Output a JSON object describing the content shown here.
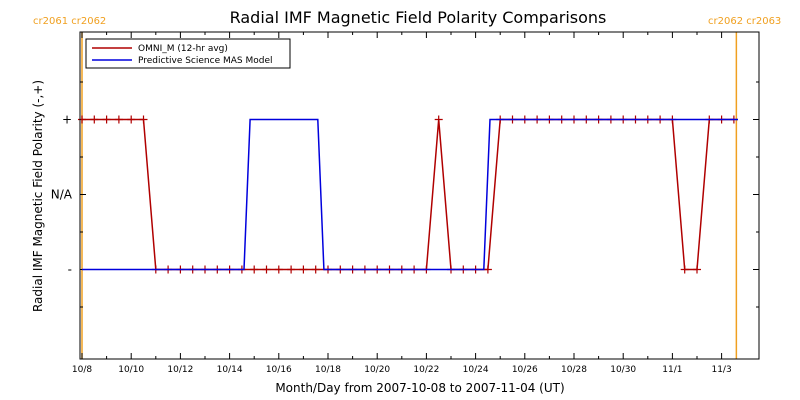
{
  "chart_data": {
    "type": "line",
    "title": "Radial IMF Magnetic Field Polarity Comparisons",
    "xlabel": "Month/Day from 2007-10-08 to 2007-11-04 (UT)",
    "ylabel": "Radial IMF Magnetic Field Polarity (-,+)",
    "carrington_labels": {
      "left": "cr2061 cr2062",
      "right": "cr2062 cr2063"
    },
    "carrington_boundaries": [
      "2007-10-08",
      "2007-11-03.6"
    ],
    "xlim": [
      "2007-10-08",
      "2007-11-04"
    ],
    "x_ticks": [
      "10/8",
      "10/10",
      "10/12",
      "10/14",
      "10/16",
      "10/18",
      "10/20",
      "10/22",
      "10/24",
      "10/26",
      "10/28",
      "10/30",
      "11/1",
      "11/3"
    ],
    "y_ticks": [
      {
        "value": 1,
        "label": "+"
      },
      {
        "value": 0,
        "label": "N/A"
      },
      {
        "value": -1,
        "label": "-"
      }
    ],
    "ylim": [
      -2,
      2
    ],
    "grid": false,
    "legend_position": "top-left",
    "colors": {
      "omni": "#b00000",
      "model": "#0000dd",
      "carrington": "#f0a020"
    },
    "series": [
      {
        "name": "OMNI_M (12-hr avg)",
        "color": "#b00000",
        "marker": "plus",
        "x": [
          "2007-10-08 00:00",
          "2007-10-08 12:00",
          "2007-10-09 00:00",
          "2007-10-09 12:00",
          "2007-10-10 00:00",
          "2007-10-10 12:00",
          "2007-10-11 00:00",
          "2007-10-11 12:00",
          "2007-10-12 00:00",
          "2007-10-12 12:00",
          "2007-10-13 00:00",
          "2007-10-13 12:00",
          "2007-10-14 00:00",
          "2007-10-14 12:00",
          "2007-10-15 00:00",
          "2007-10-15 12:00",
          "2007-10-16 00:00",
          "2007-10-16 12:00",
          "2007-10-17 00:00",
          "2007-10-17 12:00",
          "2007-10-18 00:00",
          "2007-10-18 12:00",
          "2007-10-19 00:00",
          "2007-10-19 12:00",
          "2007-10-20 00:00",
          "2007-10-20 12:00",
          "2007-10-21 00:00",
          "2007-10-21 12:00",
          "2007-10-22 00:00",
          "2007-10-22 12:00",
          "2007-10-23 00:00",
          "2007-10-23 12:00",
          "2007-10-24 00:00",
          "2007-10-24 12:00",
          "2007-10-25 00:00",
          "2007-10-25 12:00",
          "2007-10-26 00:00",
          "2007-10-26 12:00",
          "2007-10-27 00:00",
          "2007-10-27 12:00",
          "2007-10-28 00:00",
          "2007-10-28 12:00",
          "2007-10-29 00:00",
          "2007-10-29 12:00",
          "2007-10-30 00:00",
          "2007-10-30 12:00",
          "2007-10-31 00:00",
          "2007-10-31 12:00",
          "2007-11-01 00:00",
          "2007-11-01 12:00",
          "2007-11-02 00:00",
          "2007-11-02 12:00",
          "2007-11-03 00:00",
          "2007-11-03 12:00"
        ],
        "y": [
          1,
          1,
          1,
          1,
          1,
          1,
          -1,
          -1,
          -1,
          -1,
          -1,
          -1,
          -1,
          -1,
          -1,
          -1,
          -1,
          -1,
          -1,
          -1,
          -1,
          -1,
          -1,
          -1,
          -1,
          -1,
          -1,
          -1,
          -1,
          1,
          -1,
          -1,
          -1,
          -1,
          1,
          1,
          1,
          1,
          1,
          1,
          1,
          1,
          1,
          1,
          1,
          1,
          1,
          1,
          1,
          -1,
          -1,
          1,
          1,
          1
        ]
      },
      {
        "name": "Predictive Science MAS Model",
        "color": "#0000dd",
        "marker": "none",
        "x": [
          "2007-10-08 00:00",
          "2007-10-14 14:00",
          "2007-10-14 20:00",
          "2007-10-17 14:00",
          "2007-10-17 20:00",
          "2007-10-24 08:00",
          "2007-10-24 14:00",
          "2007-11-03 16:00"
        ],
        "y": [
          -1,
          -1,
          1,
          1,
          -1,
          -1,
          1,
          1
        ]
      }
    ]
  }
}
